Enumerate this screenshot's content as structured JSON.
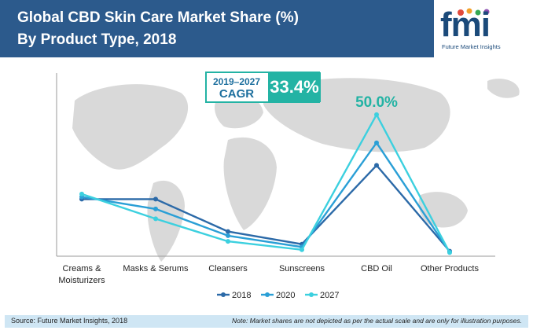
{
  "header": {
    "title_line1": "Global CBD Skin Care Market Share (%)",
    "title_line2": "By Product Type, 2018",
    "bg_color": "#2c5a8c"
  },
  "logo": {
    "text": "fmi",
    "subtitle": "Future Market Insights"
  },
  "cagr": {
    "years": "2019–2027",
    "label": "CAGR",
    "value": "33.4%",
    "color": "#23b3a4"
  },
  "peak_label": "50.0%",
  "chart_data": {
    "type": "line",
    "title": "Global CBD Skin Care Market Share (%)",
    "subtitle": "By Product Type, 2018",
    "categories": [
      "Creams & Moisturizers",
      "Masks & Serums",
      "Cleansers",
      "Sunscreens",
      "CBD Oil",
      "Other Products"
    ],
    "category_lines": [
      [
        "Creams &",
        "Moisturizers"
      ],
      [
        "Masks & Serums"
      ],
      [
        "Cleansers"
      ],
      [
        "Sunscreens"
      ],
      [
        "CBD Oil"
      ],
      [
        "Other Products"
      ]
    ],
    "series": [
      {
        "name": "2018",
        "color": "#2c6aa8",
        "values": [
          20.0,
          20.0,
          8.5,
          4.0,
          32.0,
          1.5
        ]
      },
      {
        "name": "2020",
        "color": "#2a9fd6",
        "values": [
          20.8,
          16.5,
          7.0,
          3.0,
          40.0,
          1.2
        ]
      },
      {
        "name": "2027",
        "color": "#3cd0df",
        "values": [
          21.8,
          13.0,
          5.0,
          2.0,
          50.0,
          1.0
        ]
      }
    ],
    "ylim": [
      0,
      55
    ],
    "annotations": [
      "50.0%"
    ],
    "legend": "bottom-center"
  },
  "footer": {
    "source": "Source: Future Market Insights, 2018",
    "note": "Note: Market shares are not depicted as per the actual scale and are only for illustration purposes."
  }
}
